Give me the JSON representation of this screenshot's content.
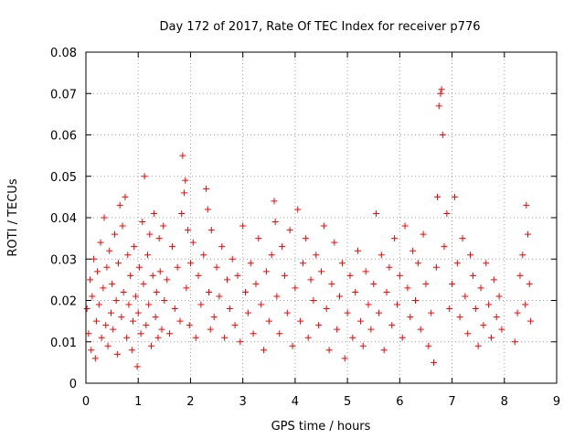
{
  "chart_data": {
    "type": "scatter",
    "title": "Day 172 of 2017, Rate Of TEC Index for receiver p776",
    "xlabel": "GPS time / hours",
    "ylabel": "ROTI / TECUs",
    "xlim": [
      0,
      9
    ],
    "ylim": [
      0,
      0.08
    ],
    "x_ticks": [
      "0",
      "1",
      "2",
      "3",
      "4",
      "5",
      "6",
      "7",
      "8",
      "9"
    ],
    "y_ticks": [
      "0",
      "0.01",
      "0.02",
      "0.03",
      "0.04",
      "0.05",
      "0.06",
      "0.07",
      "0.08"
    ],
    "grid": true,
    "marker": "+",
    "series": [
      {
        "name": "ROTI",
        "color": "#ff0000",
        "x": [
          0.02,
          0.05,
          0.08,
          0.1,
          0.12,
          0.15,
          0.18,
          0.2,
          0.22,
          0.25,
          0.28,
          0.3,
          0.33,
          0.35,
          0.38,
          0.4,
          0.42,
          0.45,
          0.48,
          0.5,
          0.52,
          0.55,
          0.58,
          0.6,
          0.62,
          0.65,
          0.68,
          0.7,
          0.72,
          0.75,
          0.78,
          0.8,
          0.82,
          0.85,
          0.88,
          0.9,
          0.92,
          0.95,
          0.98,
          1.0,
          1.02,
          1.05,
          1.08,
          1.1,
          1.12,
          1.15,
          1.18,
          1.2,
          1.22,
          1.25,
          1.28,
          1.3,
          1.33,
          1.35,
          1.38,
          1.4,
          1.42,
          1.45,
          1.48,
          1.5,
          1.55,
          1.6,
          1.65,
          1.7,
          1.75,
          1.8,
          1.83,
          1.85,
          1.88,
          1.9,
          1.92,
          1.95,
          1.98,
          2.0,
          2.05,
          2.1,
          2.15,
          2.2,
          2.25,
          2.3,
          2.33,
          2.35,
          2.38,
          2.4,
          2.45,
          2.5,
          2.55,
          2.6,
          2.65,
          2.7,
          2.75,
          2.8,
          2.85,
          2.9,
          2.95,
          3.0,
          3.05,
          3.1,
          3.15,
          3.2,
          3.25,
          3.3,
          3.35,
          3.4,
          3.45,
          3.5,
          3.55,
          3.6,
          3.62,
          3.65,
          3.7,
          3.75,
          3.8,
          3.85,
          3.9,
          3.95,
          4.0,
          4.05,
          4.1,
          4.15,
          4.2,
          4.25,
          4.3,
          4.35,
          4.4,
          4.45,
          4.5,
          4.55,
          4.6,
          4.65,
          4.7,
          4.75,
          4.8,
          4.85,
          4.9,
          4.95,
          5.0,
          5.05,
          5.1,
          5.15,
          5.2,
          5.25,
          5.3,
          5.35,
          5.4,
          5.45,
          5.5,
          5.55,
          5.6,
          5.65,
          5.7,
          5.75,
          5.8,
          5.85,
          5.9,
          5.95,
          6.0,
          6.05,
          6.1,
          6.15,
          6.2,
          6.25,
          6.3,
          6.35,
          6.4,
          6.45,
          6.5,
          6.55,
          6.6,
          6.65,
          6.7,
          6.72,
          6.75,
          6.78,
          6.8,
          6.82,
          6.85,
          6.9,
          6.95,
          7.0,
          7.05,
          7.1,
          7.15,
          7.2,
          7.25,
          7.3,
          7.35,
          7.4,
          7.45,
          7.5,
          7.55,
          7.6,
          7.65,
          7.7,
          7.75,
          7.8,
          7.85,
          7.9,
          7.95,
          8.2,
          8.25,
          8.3,
          8.35,
          8.4,
          8.42,
          8.45,
          8.48,
          8.5
        ],
        "y": [
          0.018,
          0.012,
          0.025,
          0.008,
          0.021,
          0.03,
          0.006,
          0.015,
          0.027,
          0.019,
          0.034,
          0.011,
          0.023,
          0.04,
          0.014,
          0.028,
          0.009,
          0.032,
          0.017,
          0.024,
          0.013,
          0.036,
          0.02,
          0.007,
          0.029,
          0.043,
          0.016,
          0.038,
          0.022,
          0.045,
          0.011,
          0.031,
          0.019,
          0.026,
          0.008,
          0.015,
          0.033,
          0.021,
          0.004,
          0.017,
          0.028,
          0.012,
          0.039,
          0.024,
          0.05,
          0.014,
          0.031,
          0.019,
          0.036,
          0.009,
          0.026,
          0.041,
          0.016,
          0.022,
          0.011,
          0.035,
          0.027,
          0.013,
          0.038,
          0.02,
          0.025,
          0.012,
          0.033,
          0.018,
          0.028,
          0.015,
          0.041,
          0.055,
          0.046,
          0.049,
          0.023,
          0.037,
          0.014,
          0.029,
          0.034,
          0.011,
          0.026,
          0.019,
          0.031,
          0.047,
          0.042,
          0.022,
          0.013,
          0.037,
          0.016,
          0.028,
          0.021,
          0.033,
          0.011,
          0.025,
          0.018,
          0.03,
          0.014,
          0.026,
          0.01,
          0.038,
          0.022,
          0.017,
          0.029,
          0.012,
          0.024,
          0.035,
          0.019,
          0.008,
          0.027,
          0.015,
          0.031,
          0.044,
          0.039,
          0.021,
          0.012,
          0.033,
          0.026,
          0.017,
          0.037,
          0.009,
          0.023,
          0.042,
          0.015,
          0.029,
          0.035,
          0.011,
          0.025,
          0.02,
          0.031,
          0.014,
          0.027,
          0.038,
          0.018,
          0.008,
          0.024,
          0.034,
          0.013,
          0.021,
          0.029,
          0.006,
          0.017,
          0.026,
          0.011,
          0.022,
          0.032,
          0.015,
          0.009,
          0.027,
          0.019,
          0.013,
          0.024,
          0.041,
          0.017,
          0.031,
          0.008,
          0.022,
          0.028,
          0.014,
          0.035,
          0.019,
          0.026,
          0.011,
          0.038,
          0.023,
          0.016,
          0.032,
          0.02,
          0.029,
          0.013,
          0.036,
          0.024,
          0.009,
          0.017,
          0.005,
          0.028,
          0.045,
          0.067,
          0.07,
          0.071,
          0.06,
          0.033,
          0.041,
          0.018,
          0.024,
          0.045,
          0.029,
          0.016,
          0.035,
          0.021,
          0.012,
          0.031,
          0.026,
          0.018,
          0.009,
          0.023,
          0.014,
          0.029,
          0.019,
          0.011,
          0.025,
          0.016,
          0.021,
          0.013,
          0.01,
          0.017,
          0.026,
          0.031,
          0.019,
          0.043,
          0.036,
          0.024,
          0.015
        ]
      }
    ]
  }
}
